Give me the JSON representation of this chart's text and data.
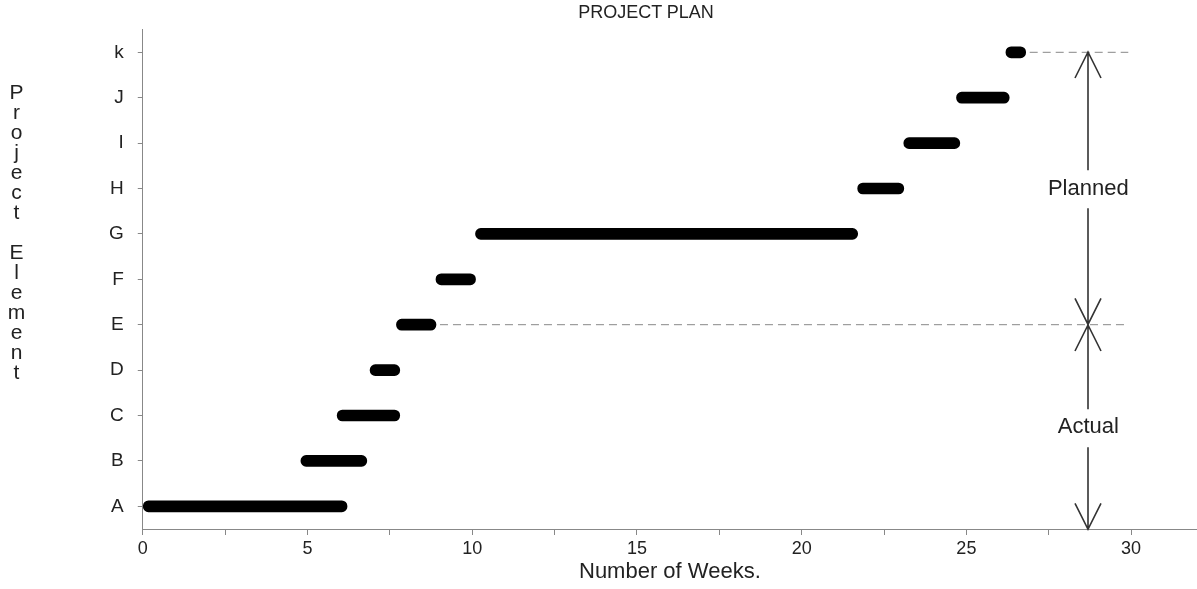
{
  "chart_data": {
    "type": "bar",
    "orientation": "horizontal",
    "title": "PROJECT PLAN",
    "xlabel": "Number of Weeks.",
    "ylabel": "Project Element",
    "categories": [
      "k",
      "J",
      "I",
      "H",
      "G",
      "F",
      "E",
      "D",
      "C",
      "B",
      "A"
    ],
    "base": [
      26.2,
      24.7,
      23.1,
      21.7,
      10.1,
      8.9,
      7.7,
      6.9,
      5.9,
      4.8,
      0
    ],
    "values": [
      0.6,
      1.6,
      1.7,
      1.4,
      11.6,
      1.2,
      1.2,
      0.9,
      1.9,
      2.0,
      6.2
    ],
    "color": "#000000",
    "xlim": [
      0,
      32
    ],
    "xticks": [
      0,
      {
        "value": 2.5,
        "label": null
      },
      5,
      {
        "value": 7.5,
        "label": null
      },
      10,
      {
        "value": 12.5,
        "label": null
      },
      15,
      {
        "value": 17.5,
        "label": null
      },
      20,
      {
        "value": 22.5,
        "label": null
      },
      25,
      {
        "value": 27.5,
        "label": null
      },
      30
    ],
    "grid": false,
    "legend": false,
    "ref_lines": [
      {
        "axis": "y",
        "value": "k",
        "line_style": "dashed"
      },
      {
        "axis": "y",
        "value": "E",
        "line_style": "dashed"
      }
    ],
    "annotations": [
      {
        "text": "Planned",
        "x": 28.7,
        "y": "k"
      },
      {
        "text": "Actual",
        "x": 28.7,
        "y": "E"
      }
    ]
  }
}
